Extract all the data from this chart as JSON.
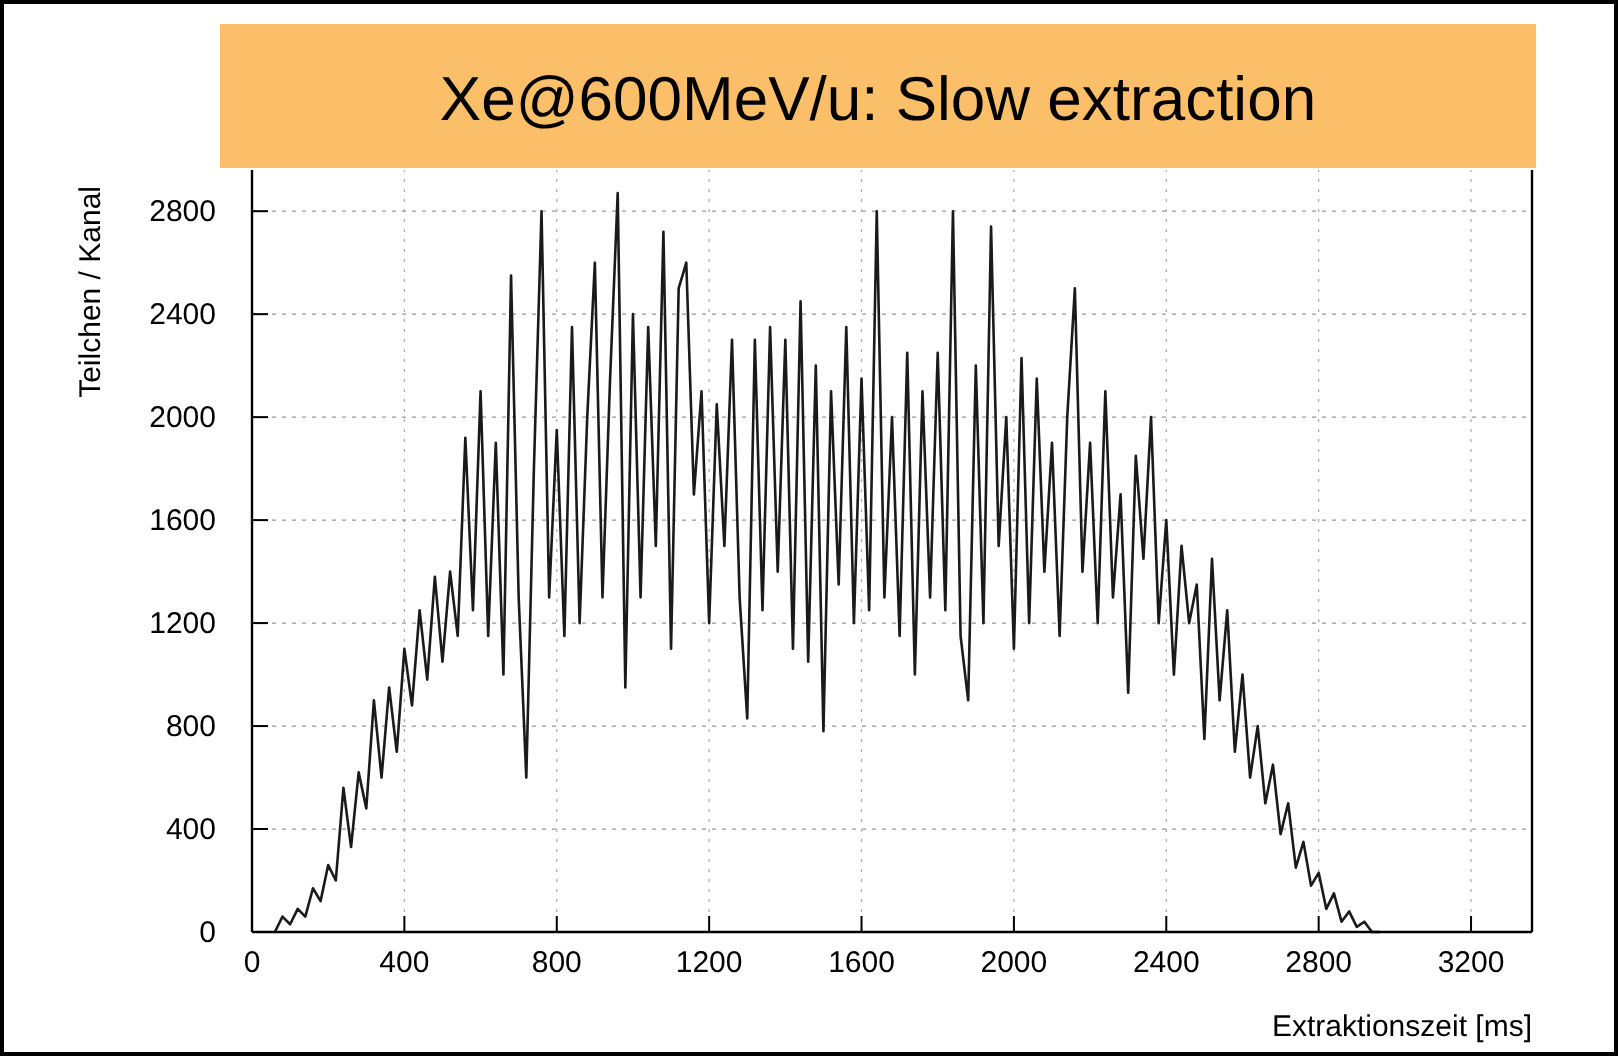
{
  "chart_data": {
    "type": "line",
    "title": "Xe@600MeV/u: Slow extraction",
    "xlabel": "Extraktionszeit [ms]",
    "ylabel": "Teilchen / Kanal",
    "x": [
      60,
      80,
      100,
      120,
      140,
      160,
      180,
      200,
      220,
      240,
      260,
      280,
      300,
      320,
      340,
      360,
      380,
      400,
      420,
      440,
      460,
      480,
      500,
      520,
      540,
      560,
      580,
      600,
      620,
      640,
      660,
      680,
      700,
      720,
      740,
      760,
      780,
      800,
      820,
      840,
      860,
      880,
      900,
      920,
      940,
      960,
      980,
      1000,
      1020,
      1040,
      1060,
      1080,
      1100,
      1120,
      1140,
      1160,
      1180,
      1200,
      1220,
      1240,
      1260,
      1280,
      1300,
      1320,
      1340,
      1360,
      1380,
      1400,
      1420,
      1440,
      1460,
      1480,
      1500,
      1520,
      1540,
      1560,
      1580,
      1600,
      1620,
      1640,
      1660,
      1680,
      1700,
      1720,
      1740,
      1760,
      1780,
      1800,
      1820,
      1840,
      1860,
      1880,
      1900,
      1920,
      1940,
      1960,
      1980,
      2000,
      2020,
      2040,
      2060,
      2080,
      2100,
      2120,
      2140,
      2160,
      2180,
      2200,
      2220,
      2240,
      2260,
      2280,
      2300,
      2320,
      2340,
      2360,
      2380,
      2400,
      2420,
      2440,
      2460,
      2480,
      2500,
      2520,
      2540,
      2560,
      2580,
      2600,
      2620,
      2640,
      2660,
      2680,
      2700,
      2720,
      2740,
      2760,
      2780,
      2800,
      2820,
      2840,
      2860,
      2880,
      2900,
      2920,
      2940,
      2960
    ],
    "series": [
      {
        "color": "#1a1a1a",
        "values": [
          0,
          60,
          30,
          90,
          60,
          170,
          120,
          260,
          200,
          560,
          330,
          620,
          480,
          900,
          600,
          950,
          700,
          1100,
          880,
          1250,
          980,
          1380,
          1050,
          1400,
          1150,
          1920,
          1250,
          2100,
          1150,
          1900,
          1000,
          2550,
          1300,
          600,
          1800,
          2800,
          1300,
          1950,
          1150,
          2350,
          1200,
          2000,
          2600,
          1300,
          2150,
          2870,
          950,
          2400,
          1300,
          2350,
          1500,
          2720,
          1100,
          2500,
          2600,
          1700,
          2100,
          1200,
          2050,
          1500,
          2300,
          1300,
          830,
          2300,
          1250,
          2350,
          1400,
          2300,
          1100,
          2450,
          1050,
          2200,
          780,
          2100,
          1350,
          2350,
          1200,
          2150,
          1250,
          2800,
          1300,
          2000,
          1150,
          2250,
          1000,
          2100,
          1300,
          2250,
          1250,
          2800,
          1150,
          900,
          2200,
          1200,
          2740,
          1500,
          2000,
          1100,
          2230,
          1200,
          2150,
          1400,
          1900,
          1150,
          2000,
          2500,
          1400,
          1900,
          1200,
          2100,
          1300,
          1700,
          930,
          1850,
          1450,
          2000,
          1200,
          1600,
          1000,
          1500,
          1200,
          1350,
          750,
          1450,
          900,
          1250,
          700,
          1000,
          600,
          800,
          500,
          650,
          380,
          500,
          250,
          350,
          180,
          230,
          90,
          150,
          40,
          80,
          20,
          40,
          0,
          0
        ]
      }
    ],
    "xlim": [
      0,
      3360
    ],
    "ylim": [
      0,
      2960
    ],
    "xticks": [
      0,
      400,
      800,
      1200,
      1600,
      2000,
      2400,
      2800,
      3200
    ],
    "yticks": [
      0,
      400,
      800,
      1200,
      1600,
      2000,
      2400,
      2800
    ],
    "grid": true
  }
}
